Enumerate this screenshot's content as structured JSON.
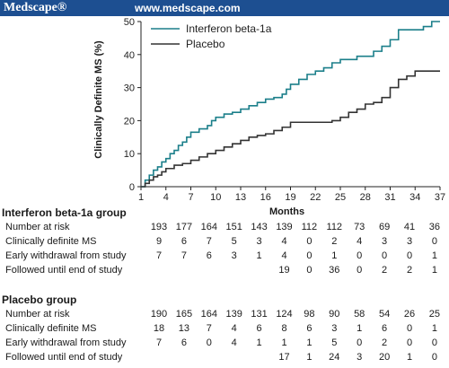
{
  "banner": {
    "brand": "Medscape®",
    "url": "www.medscape.com",
    "color": "#1d4f91"
  },
  "chart_data": {
    "type": "line",
    "ylabel": "Clinically Definite MS (%)",
    "xlabel": "Months",
    "ylim": [
      0,
      50
    ],
    "yticks": [
      0,
      10,
      20,
      30,
      40,
      50
    ],
    "xlim": [
      1,
      37
    ],
    "xticks": [
      1,
      4,
      7,
      10,
      13,
      16,
      19,
      22,
      25,
      28,
      31,
      34,
      37
    ],
    "legend_position": "top-left",
    "series": [
      {
        "name": "Interferon beta-1a",
        "color": "#1b7f8a",
        "x": [
          1,
          1.5,
          2,
          2.5,
          3,
          3.5,
          4,
          4.5,
          5,
          5.5,
          6,
          6.5,
          7,
          8,
          9,
          9.5,
          10,
          11,
          12,
          13,
          14,
          15,
          16,
          17,
          18,
          18.5,
          19,
          20,
          21,
          22,
          23,
          24,
          25,
          26,
          27,
          28,
          29,
          30,
          31,
          32,
          33,
          34,
          35,
          36,
          37
        ],
        "y": [
          0,
          2,
          3.5,
          5,
          6,
          7.5,
          8.5,
          10,
          11,
          12.5,
          13.5,
          15,
          16.5,
          17.5,
          18.5,
          20,
          21,
          22,
          22.5,
          23.5,
          24.5,
          25.5,
          26.5,
          27,
          28,
          29.5,
          31,
          32.5,
          34,
          35,
          36,
          37.5,
          38.5,
          38.5,
          39.5,
          39.5,
          41,
          42.5,
          44.5,
          47.5,
          47.5,
          47.5,
          48.5,
          50,
          50
        ]
      },
      {
        "name": "Placebo",
        "color": "#333333",
        "x": [
          1,
          1.5,
          2,
          2.5,
          3,
          3.5,
          4,
          5,
          6,
          7,
          8,
          9,
          10,
          11,
          12,
          13,
          14,
          15,
          16,
          17,
          18,
          19,
          20,
          22,
          24,
          25,
          26,
          27,
          28,
          29,
          30,
          31,
          32,
          33,
          34,
          35,
          36,
          37
        ],
        "y": [
          0,
          1,
          2,
          3,
          3.5,
          4.5,
          5.5,
          6.5,
          7,
          8,
          9,
          10,
          11,
          12,
          13,
          14,
          15,
          15.5,
          16,
          17,
          18,
          19.5,
          19.5,
          19.5,
          20,
          21,
          22.5,
          23.5,
          25,
          25.5,
          27,
          30,
          32.5,
          33.5,
          35,
          35,
          35,
          35
        ]
      }
    ]
  },
  "table": {
    "groups": [
      {
        "title": "Interferon beta-1a group",
        "rows": [
          {
            "label": "Number at risk",
            "values": [
              "193",
              "177",
              "164",
              "151",
              "143",
              "139",
              "112",
              "112",
              "73",
              "69",
              "41",
              "36"
            ]
          },
          {
            "label": "Clinically definite MS",
            "values": [
              "9",
              "6",
              "7",
              "5",
              "3",
              "4",
              "0",
              "2",
              "4",
              "3",
              "3",
              "0"
            ]
          },
          {
            "label": "Early withdrawal from study",
            "values": [
              "7",
              "7",
              "6",
              "3",
              "1",
              "4",
              "0",
              "1",
              "0",
              "0",
              "0",
              "1"
            ]
          },
          {
            "label": "Followed until end of study",
            "values": [
              "",
              "",
              "",
              "",
              "",
              "19",
              "0",
              "36",
              "0",
              "2",
              "2",
              "1"
            ]
          }
        ]
      },
      {
        "title": "Placebo group",
        "rows": [
          {
            "label": "Number at risk",
            "values": [
              "190",
              "165",
              "164",
              "139",
              "131",
              "124",
              "98",
              "90",
              "58",
              "54",
              "26",
              "25"
            ]
          },
          {
            "label": "Clinically definite MS",
            "values": [
              "18",
              "13",
              "7",
              "4",
              "6",
              "8",
              "6",
              "3",
              "1",
              "6",
              "0",
              "1"
            ]
          },
          {
            "label": "Early withdrawal from study",
            "values": [
              "7",
              "6",
              "0",
              "4",
              "1",
              "1",
              "1",
              "5",
              "0",
              "2",
              "0",
              "0"
            ]
          },
          {
            "label": "Followed until end of study",
            "values": [
              "",
              "",
              "",
              "",
              "",
              "17",
              "1",
              "24",
              "3",
              "20",
              "1",
              "0"
            ]
          }
        ]
      }
    ]
  }
}
